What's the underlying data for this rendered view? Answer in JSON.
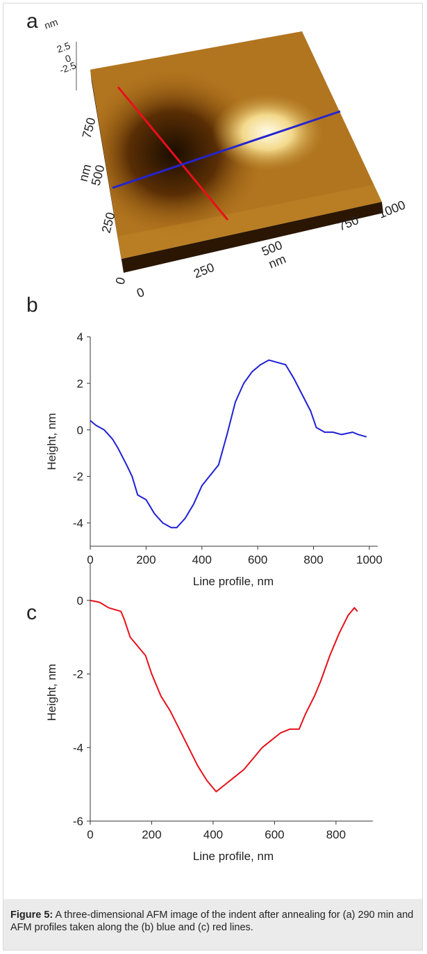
{
  "panel_labels": [
    "a",
    "b",
    "c"
  ],
  "afm_image": {
    "z_unit": "nm",
    "z_ticks": [
      "2.5",
      "0",
      "-2.5"
    ],
    "y_unit": "nm",
    "y_ticks": [
      "250",
      "500",
      "750"
    ],
    "origin_y": "0",
    "x_unit": "nm",
    "x_ticks": [
      "0",
      "250",
      "500",
      "750",
      "1000"
    ]
  },
  "chart_data": [
    {
      "type": "line",
      "xlabel": "Line profile, nm",
      "ylabel": "Height, nm",
      "xlim": [
        0,
        1030
      ],
      "ylim": [
        -5,
        4
      ],
      "xticks": [
        0,
        200,
        400,
        600,
        800,
        1000
      ],
      "yticks": [
        -4,
        -2,
        0,
        2,
        4
      ],
      "series": [
        {
          "color": "#1f1fd6",
          "x": [
            0,
            20,
            50,
            80,
            100,
            130,
            150,
            170,
            200,
            230,
            260,
            290,
            310,
            340,
            370,
            400,
            440,
            460,
            490,
            520,
            550,
            580,
            610,
            640,
            670,
            700,
            730,
            760,
            790,
            810,
            840,
            870,
            900,
            940,
            960,
            990
          ],
          "values": [
            0.4,
            0.2,
            0,
            -0.4,
            -0.8,
            -1.5,
            -2,
            -2.8,
            -3,
            -3.6,
            -4,
            -4.2,
            -4.2,
            -3.8,
            -3.2,
            -2.4,
            -1.8,
            -1.5,
            -0.2,
            1.2,
            2,
            2.5,
            2.8,
            3,
            2.9,
            2.8,
            2.2,
            1.5,
            0.8,
            0.1,
            -0.1,
            -0.1,
            -0.2,
            -0.1,
            -0.2,
            -0.3
          ]
        }
      ]
    },
    {
      "type": "line",
      "xlabel": "Line profile, nm",
      "ylabel": "Height, nm",
      "xlim": [
        0,
        920
      ],
      "ylim": [
        -6,
        1
      ],
      "xticks": [
        0,
        200,
        400,
        600,
        800
      ],
      "yticks": [
        -6,
        -4,
        -2,
        0
      ],
      "series": [
        {
          "color": "#e8101a",
          "x": [
            0,
            30,
            60,
            100,
            110,
            130,
            150,
            180,
            200,
            230,
            260,
            290,
            320,
            350,
            380,
            410,
            440,
            470,
            500,
            530,
            560,
            590,
            620,
            650,
            680,
            700,
            730,
            750,
            780,
            810,
            840,
            860,
            870
          ],
          "values": [
            0,
            -0.05,
            -0.2,
            -0.3,
            -0.5,
            -1,
            -1.2,
            -1.5,
            -2,
            -2.6,
            -3,
            -3.5,
            -4,
            -4.5,
            -4.9,
            -5.2,
            -5,
            -4.8,
            -4.6,
            -4.3,
            -4,
            -3.8,
            -3.6,
            -3.5,
            -3.5,
            -3.1,
            -2.6,
            -2.2,
            -1.5,
            -0.9,
            -0.4,
            -0.2,
            -0.3
          ]
        }
      ]
    }
  ],
  "caption": {
    "label": "Figure 5:",
    "text": "A three-dimensional AFM image of the indent after annealing for (a) 290 min and AFM profiles taken along the (b) blue and (c) red lines."
  }
}
